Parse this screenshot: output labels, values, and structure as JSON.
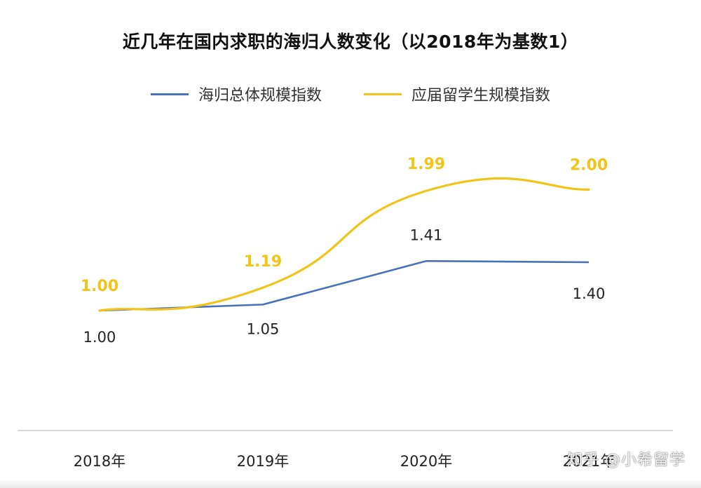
{
  "chart_data": {
    "type": "line",
    "title": "近几年在国内求职的海归人数变化（以2018年为基数1）",
    "categories": [
      "2018年",
      "2019年",
      "2020年",
      "2021年"
    ],
    "series": [
      {
        "name": "海归总体规模指数",
        "color": "#4a70b8",
        "values": [
          1.0,
          1.05,
          1.41,
          1.4
        ],
        "labels": [
          "1.00",
          "1.05",
          "1.41",
          "1.40"
        ]
      },
      {
        "name": "应届留学生规模指数",
        "color": "#f0c419",
        "values": [
          1.0,
          1.19,
          1.99,
          2.0
        ],
        "labels": [
          "1.00",
          "1.19",
          "1.99",
          "2.00"
        ]
      }
    ],
    "legend_position": "top-center",
    "grid": false
  },
  "watermark": "知乎 @小希留学"
}
